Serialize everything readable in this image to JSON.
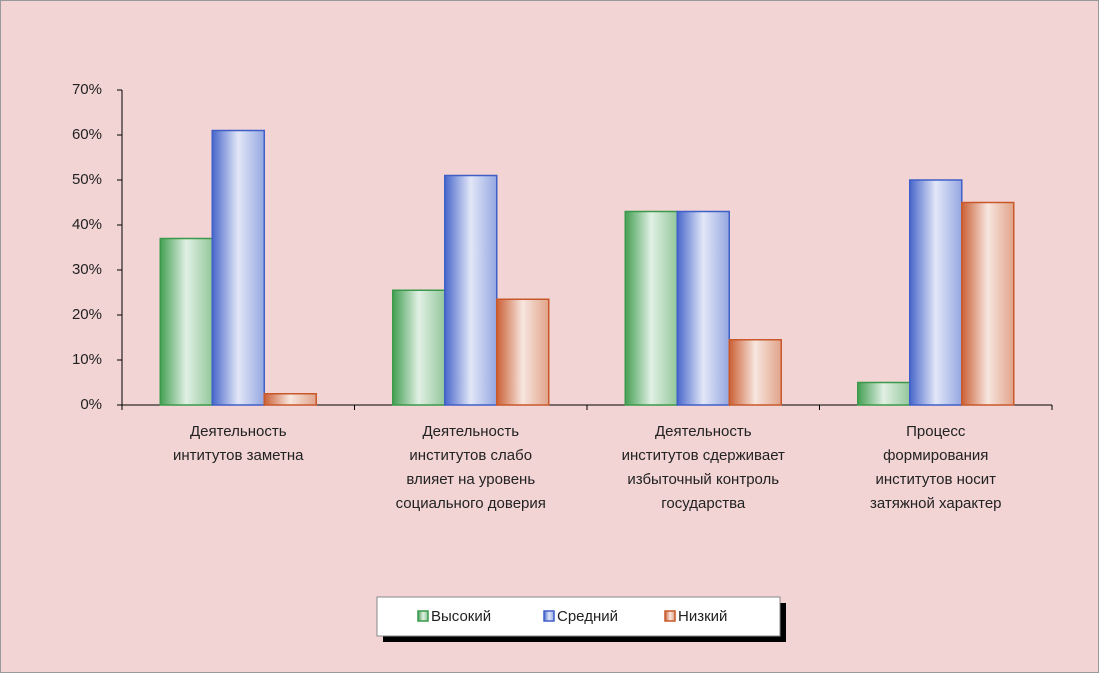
{
  "chart_data": {
    "type": "bar",
    "categories": [
      "Деятельность\nинтитутов заметна",
      "Деятельность\nинститутов слабо\nвлияет на уровень\nсоциального доверия",
      "Деятельность\nинститутов сдерживает\nизбыточный контроль\nгосударства",
      "Процесс\nформирования\nинститутов носит\nзатяжной характер"
    ],
    "series": [
      {
        "name": "Высокий",
        "color": "#3a9a4a",
        "values": [
          37,
          25.5,
          43,
          5
        ]
      },
      {
        "name": "Средний",
        "color": "#3f5fc8",
        "values": [
          61,
          51,
          43,
          50
        ]
      },
      {
        "name": "Низкий",
        "color": "#c8582a",
        "values": [
          2.5,
          23.5,
          14.5,
          45
        ]
      }
    ],
    "ylim": [
      0,
      70
    ],
    "yticks": [
      {
        "value": 0,
        "label": "0%"
      },
      {
        "value": 10,
        "label": "10%"
      },
      {
        "value": 20,
        "label": "20%"
      },
      {
        "value": 30,
        "label": "30%"
      },
      {
        "value": 40,
        "label": "40%"
      },
      {
        "value": 50,
        "label": "50%"
      },
      {
        "value": 60,
        "label": "60%"
      },
      {
        "value": 70,
        "label": "70%"
      }
    ],
    "legend": "bottom"
  }
}
